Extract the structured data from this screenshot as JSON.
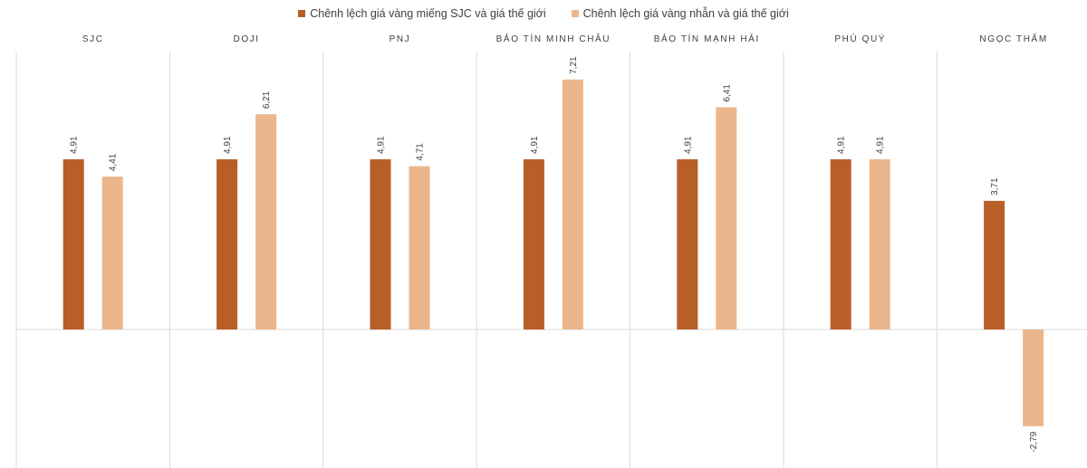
{
  "legend": {
    "series1": "Chênh lệch giá vàng miếng SJC và giá thế giới",
    "series2": "Chênh lệch giá vàng nhẫn và giá thế giới"
  },
  "colors": {
    "series1": "#b85f28",
    "series2": "#ebb68b",
    "grid": "#d9d9d9"
  },
  "chart_data": {
    "type": "bar",
    "categories": [
      "SJC",
      "DOJI",
      "PNJ",
      "BẢO TÍN MINH CHÂU",
      "BẢO TÍN MẠNH HẢI",
      "PHÚ QUÝ",
      "NGỌC THẨM"
    ],
    "series": [
      {
        "name": "Chênh lệch giá vàng miếng SJC và giá thế giới",
        "values": [
          4.91,
          4.91,
          4.91,
          4.91,
          4.91,
          4.91,
          3.71
        ],
        "labels": [
          "4,91",
          "4,91",
          "4,91",
          "4,91",
          "4,91",
          "4,91",
          "3,71"
        ]
      },
      {
        "name": "Chênh lệch giá vàng nhẫn và giá thế giới",
        "values": [
          4.41,
          6.21,
          4.71,
          7.21,
          6.41,
          4.91,
          -2.79
        ],
        "labels": [
          "4,41",
          "6,21",
          "4,71",
          "7,21",
          "6,41",
          "4,91",
          "-2,79"
        ]
      }
    ],
    "legend_position": "top",
    "ylim": [
      -4,
      8.1
    ]
  }
}
